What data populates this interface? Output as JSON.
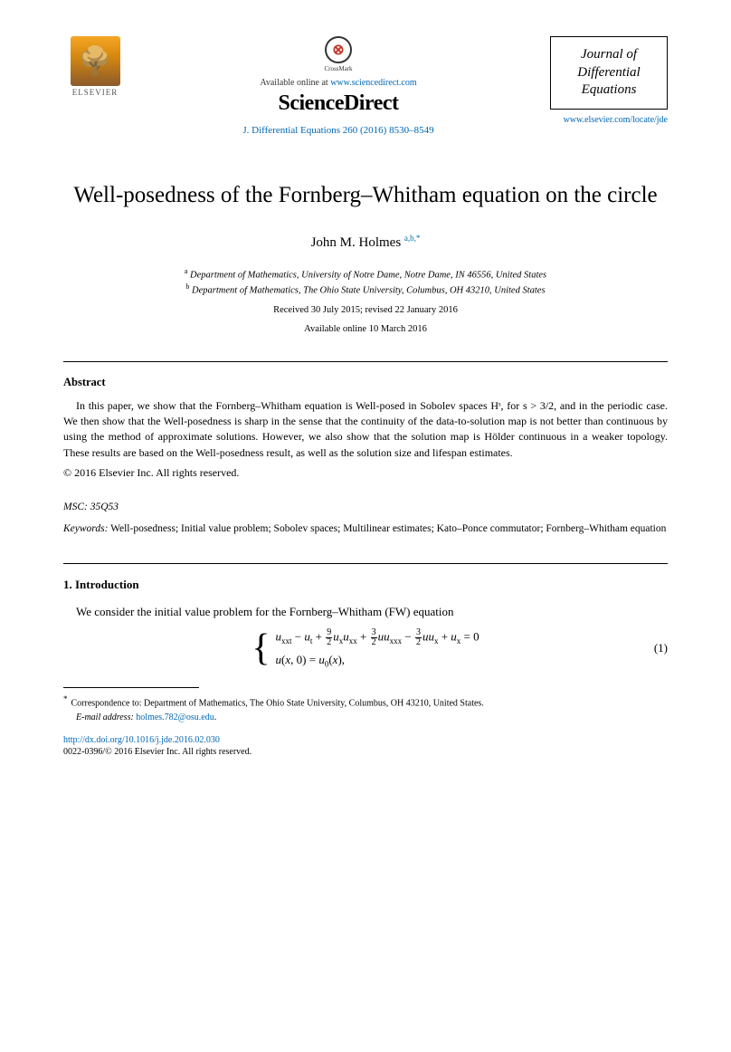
{
  "header": {
    "elsevier_label": "ELSEVIER",
    "crossmark_label": "CrossMark",
    "available_text": "Available online at ",
    "available_link": "www.sciencedirect.com",
    "sciencedirect": "ScienceDirect",
    "citation": "J. Differential Equations 260 (2016) 8530–8549",
    "journal_name_line1": "Journal of",
    "journal_name_line2": "Differential",
    "journal_name_line3": "Equations",
    "journal_link": "www.elsevier.com/locate/jde"
  },
  "title": "Well-posedness of the Fornberg–Whitham equation on the circle",
  "author": {
    "name": "John M. Holmes",
    "sup": "a,b,",
    "star": "*"
  },
  "affiliations": {
    "a": "Department of Mathematics, University of Notre Dame, Notre Dame, IN 46556, United States",
    "b": "Department of Mathematics, The Ohio State University, Columbus, OH 43210, United States"
  },
  "dates": {
    "received_revised": "Received 30 July 2015; revised 22 January 2016",
    "available": "Available online 10 March 2016"
  },
  "abstract": {
    "heading": "Abstract",
    "body": "In this paper, we show that the Fornberg–Whitham equation is Well-posed in Sobolev spaces Hˢ, for s > 3/2, and in the periodic case. We then show that the Well-posedness is sharp in the sense that the continuity of the data-to-solution map is not better than continuous by using the method of approximate solutions. However, we also show that the solution map is Hölder continuous in a weaker topology. These results are based on the Well-posedness result, as well as the solution size and lifespan estimates.",
    "copyright": "© 2016 Elsevier Inc. All rights reserved."
  },
  "msc": {
    "label": "MSC:",
    "value": "35Q53"
  },
  "keywords": {
    "label": "Keywords:",
    "value": "Well-posedness; Initial value problem; Sobolev spaces; Multilinear estimates; Kato–Ponce commutator; Fornberg–Whitham equation"
  },
  "introduction": {
    "heading": "1.  Introduction",
    "text": "We consider the initial value problem for the Fornberg–Whitham (FW) equation",
    "eq_number": "(1)"
  },
  "footnote": {
    "corr_text": "Correspondence to: Department of Mathematics, The Ohio State University, Columbus, OH 43210, United States.",
    "email_label": "E-mail address:",
    "email": "holmes.782@osu.edu",
    "email_suffix": "."
  },
  "footer": {
    "doi": "http://dx.doi.org/10.1016/j.jde.2016.02.030",
    "issn": "0022-0396/© 2016 Elsevier Inc. All rights reserved."
  },
  "colors": {
    "link": "#0066b3",
    "text": "#000000",
    "elsevier_grad_top": "#f5a623",
    "elsevier_grad_bot": "#8b5a2b"
  }
}
